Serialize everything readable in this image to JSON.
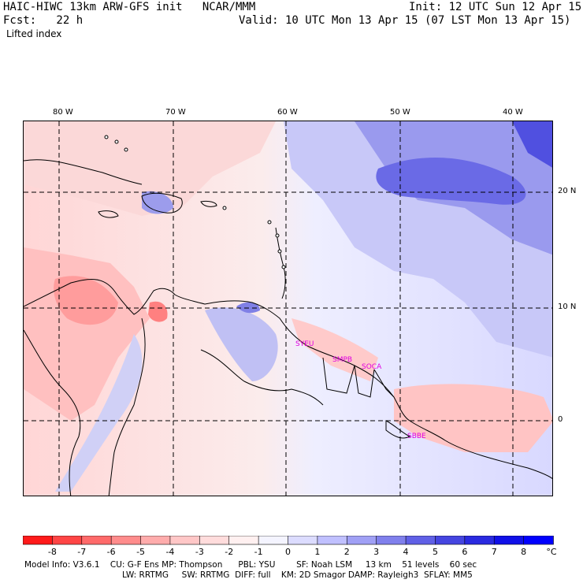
{
  "header": {
    "model_line": "HAIC-HIWC 13km ARW-GFS init   NCAR/MMM",
    "init_line": "Init: 12 UTC Sun 12 Apr 15",
    "fcst_line": "Fcst:   22 h",
    "valid_line": "Valid: 10 UTC Mon 13 Apr 15 (07 LST Mon 13 Apr 15)",
    "field_name": "Lifted index"
  },
  "map": {
    "lon_labels": [
      "80 W",
      "70 W",
      "60 W",
      "50 W",
      "40 W"
    ],
    "lat_labels": [
      "20 N",
      "10 N",
      "0"
    ],
    "site_labels": [
      "SYEU",
      "SMPB",
      "SOCA",
      "SBBE"
    ],
    "colors": {
      "coast": "#000000",
      "grid": "#000000",
      "site": "#e000e0"
    }
  },
  "colorbar": {
    "unit": "°C",
    "ticks": [
      "-8",
      "-7",
      "-6",
      "-5",
      "-4",
      "-3",
      "-2",
      "-1",
      "0",
      "1",
      "2",
      "3",
      "4",
      "5",
      "6",
      "7",
      "8"
    ],
    "colors": [
      "#ff1a1a",
      "#ff4545",
      "#ff6a6a",
      "#ff8c8c",
      "#ffacac",
      "#ffc7c7",
      "#ffdcdc",
      "#fff0f0",
      "#f4f4ff",
      "#dcdcff",
      "#c0c0ff",
      "#a0a0f5",
      "#8080ec",
      "#6060e6",
      "#4545e0",
      "#2a2ae0",
      "#1010e8",
      "#0000ff"
    ]
  },
  "footer": {
    "line1": "Model Info: V3.6.1    CU: G-F Ens MP: Thompson      PBL: YSU        SF: Noah LSM     13 km    51 levels    60 sec",
    "line2": "LW: RRTMG     SW: RRTMG  DIFF: full    KM: 2D Smagor DAMP: Rayleigh3  SFLAY: MM5"
  }
}
